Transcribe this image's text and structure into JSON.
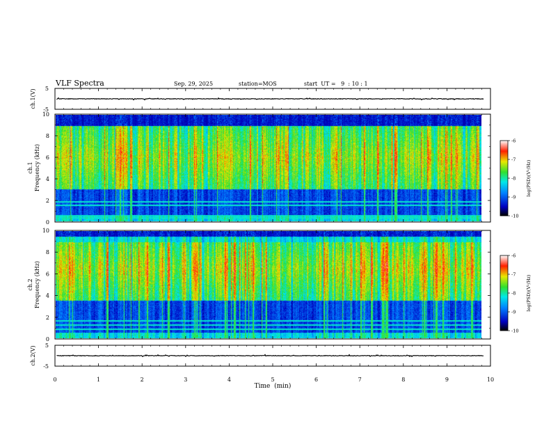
{
  "header": {
    "title": "VLF Spectra",
    "date": "Sep. 29, 2025",
    "station": "station=MOS",
    "start": "start  UT =   9  : 10 : 1"
  },
  "xaxis": {
    "label": "Time  (min)",
    "ticks": [
      "0",
      "1",
      "2",
      "3",
      "4",
      "5",
      "6",
      "7",
      "8",
      "9",
      "10"
    ],
    "range": [
      0,
      10
    ]
  },
  "panels": {
    "ch1_wave": {
      "ylabel": "ch.1(V)",
      "ticks": [
        "5",
        "-5"
      ],
      "range": [
        -5,
        5
      ]
    },
    "ch1_spec": {
      "ylabel_top": "ch.1",
      "ylabel": "Frequency (kHz)",
      "ticks": [
        "10",
        "8",
        "6",
        "4",
        "2",
        "0"
      ],
      "range": [
        0,
        10
      ]
    },
    "ch2_spec": {
      "ylabel_top": "ch.2",
      "ylabel": "Frequency (kHz)",
      "ticks": [
        "10",
        "8",
        "6",
        "4",
        "2",
        "0"
      ],
      "range": [
        0,
        10
      ]
    },
    "ch2_wave": {
      "ylabel": "ch.2(V)",
      "ticks": [
        "5",
        "-5"
      ],
      "range": [
        -5,
        5
      ]
    }
  },
  "colorbar": {
    "label": "log(PSD)(V²/Hz)",
    "ticks": [
      "-6",
      "-7",
      "-8",
      "-9",
      "-10"
    ],
    "range": [
      -10,
      -6
    ]
  },
  "chart_data": {
    "type": "heatmap",
    "title": "VLF Spectra",
    "xlabel": "Time  (min)",
    "xlim": [
      0,
      10
    ],
    "data_end_min": 9.85,
    "series": [
      {
        "name": "ch.1(V)",
        "kind": "waveform",
        "ylim": [
          -5,
          5
        ],
        "baseline_v": 0
      },
      {
        "name": "ch.1 spectrogram",
        "kind": "spectrogram",
        "ylabel": "Frequency (kHz)",
        "ylim": [
          0,
          10
        ],
        "bright_band_khz": [
          3,
          9
        ],
        "quiet_band_khz": [
          0.5,
          3
        ],
        "dark_band_khz": [
          9,
          10
        ],
        "hum_lines_khz": [
          0.3,
          0.5,
          1.5,
          1.8
        ]
      },
      {
        "name": "ch.2 spectrogram",
        "kind": "spectrogram",
        "ylabel": "Frequency (kHz)",
        "ylim": [
          0,
          10
        ],
        "bright_band_khz": [
          3.5,
          9
        ],
        "peak_khz": 6.5,
        "quiet_band_khz": [
          0.5,
          3
        ],
        "dark_band_khz": [
          9.5,
          10
        ],
        "hum_lines_khz": [
          0.8,
          1.2,
          1.6
        ]
      },
      {
        "name": "ch.2(V)",
        "kind": "waveform",
        "ylim": [
          -5,
          5
        ],
        "baseline_v": 0
      }
    ],
    "colorbar_range_log_psd": [
      -10,
      -6
    ]
  }
}
